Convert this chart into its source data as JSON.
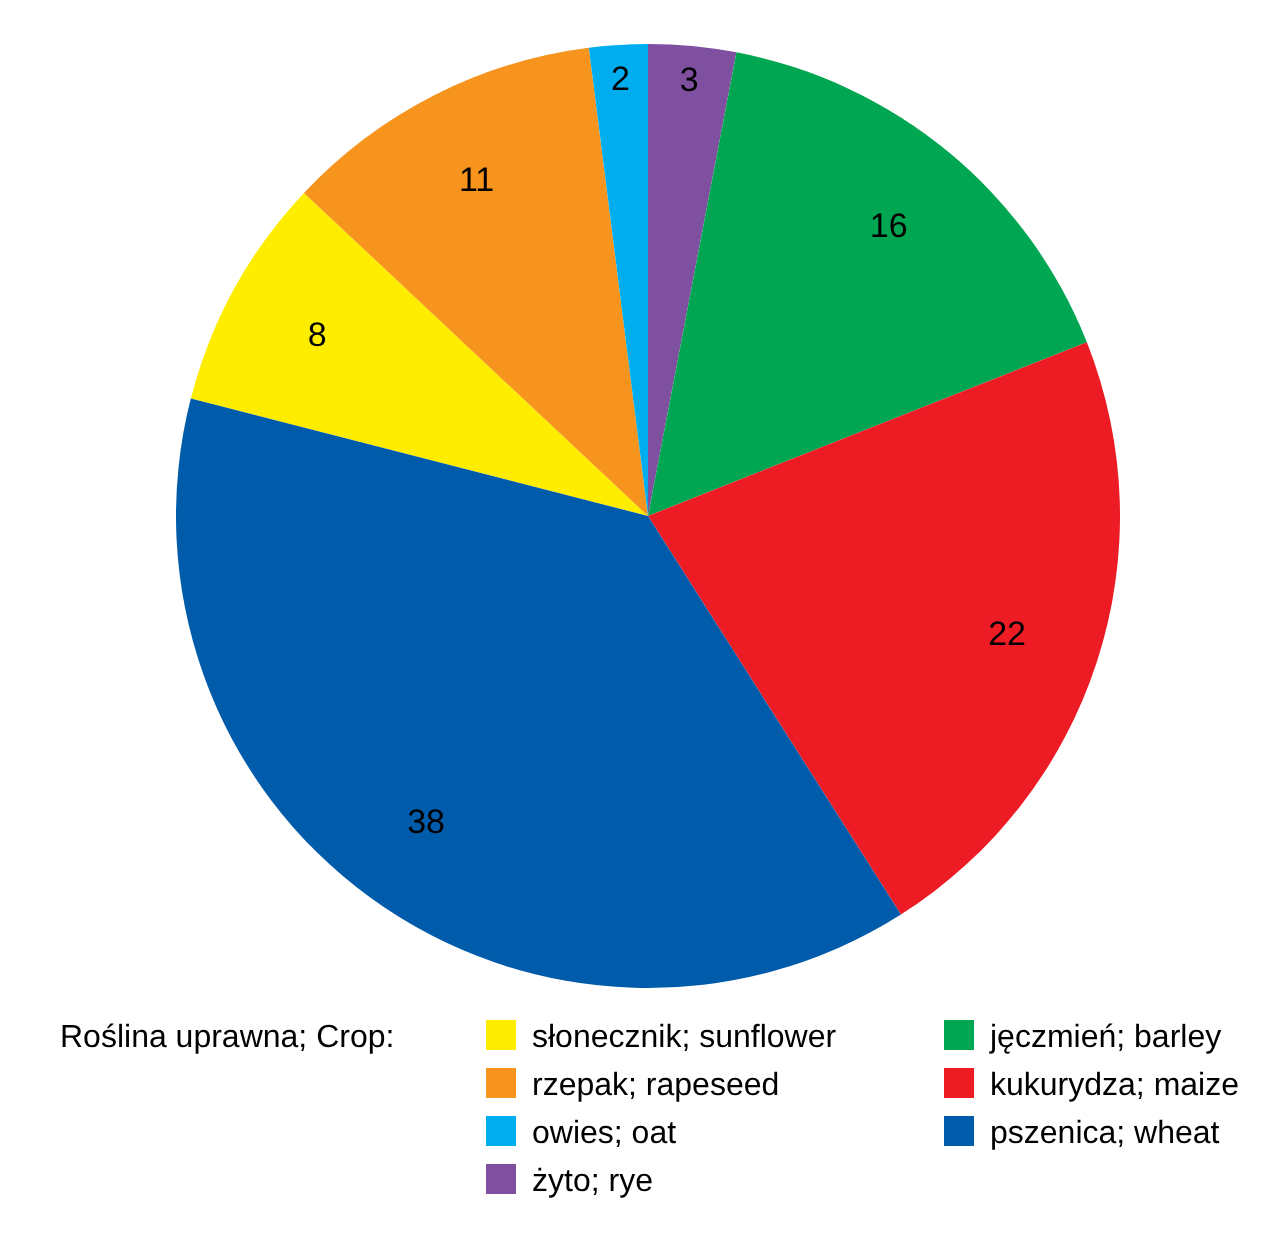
{
  "chart_data": {
    "type": "pie",
    "legend_title": "Roślina uprawna; Crop:",
    "categories": [
      "słonecznik; sunflower",
      "rzepak; rapeseed",
      "owies; oat",
      "żyto; rye",
      "jęczmień; barley",
      "kukurydza; maize",
      "pszenica; wheat"
    ],
    "values": [
      8,
      11,
      2,
      3,
      16,
      22,
      38
    ],
    "colors": [
      "#ffed00",
      "#f7941d",
      "#00aeef",
      "#7f4fa0",
      "#00a651",
      "#ed1c24",
      "#005baa"
    ],
    "data_labels": true,
    "legend": "bottom"
  }
}
